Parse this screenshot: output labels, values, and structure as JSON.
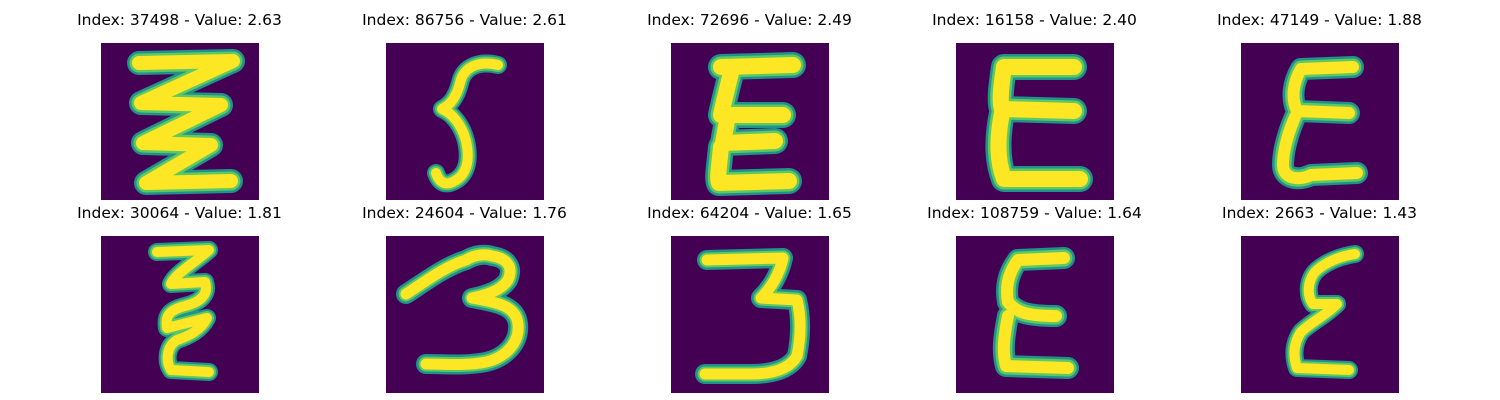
{
  "colors": {
    "background": "#440154",
    "stroke_core": "#fde725",
    "stroke_edge": "#21918c",
    "stroke_mid": "#5ec962"
  },
  "panels": [
    {
      "title": "Index: 37498 - Value: 2.63",
      "glyph": "letter-E-zigzag"
    },
    {
      "title": "Index: 86756 - Value: 2.61",
      "glyph": "digit-5"
    },
    {
      "title": "Index: 72696 - Value: 2.49",
      "glyph": "letter-E-zigzag"
    },
    {
      "title": "Index: 16158 - Value: 2.40",
      "glyph": "letter-E"
    },
    {
      "title": "Index: 47149 - Value: 1.88",
      "glyph": "letter-E"
    },
    {
      "title": "Index: 30064 - Value: 1.81",
      "glyph": "letter-E-zigzag"
    },
    {
      "title": "Index: 24604 - Value: 1.76",
      "glyph": "digit-3"
    },
    {
      "title": "Index: 64204 - Value: 1.65",
      "glyph": "digit-3"
    },
    {
      "title": "Index: 108759 - Value: 1.64",
      "glyph": "letter-E"
    },
    {
      "title": "Index: 2663 - Value: 1.43",
      "glyph": "letter-E"
    }
  ]
}
